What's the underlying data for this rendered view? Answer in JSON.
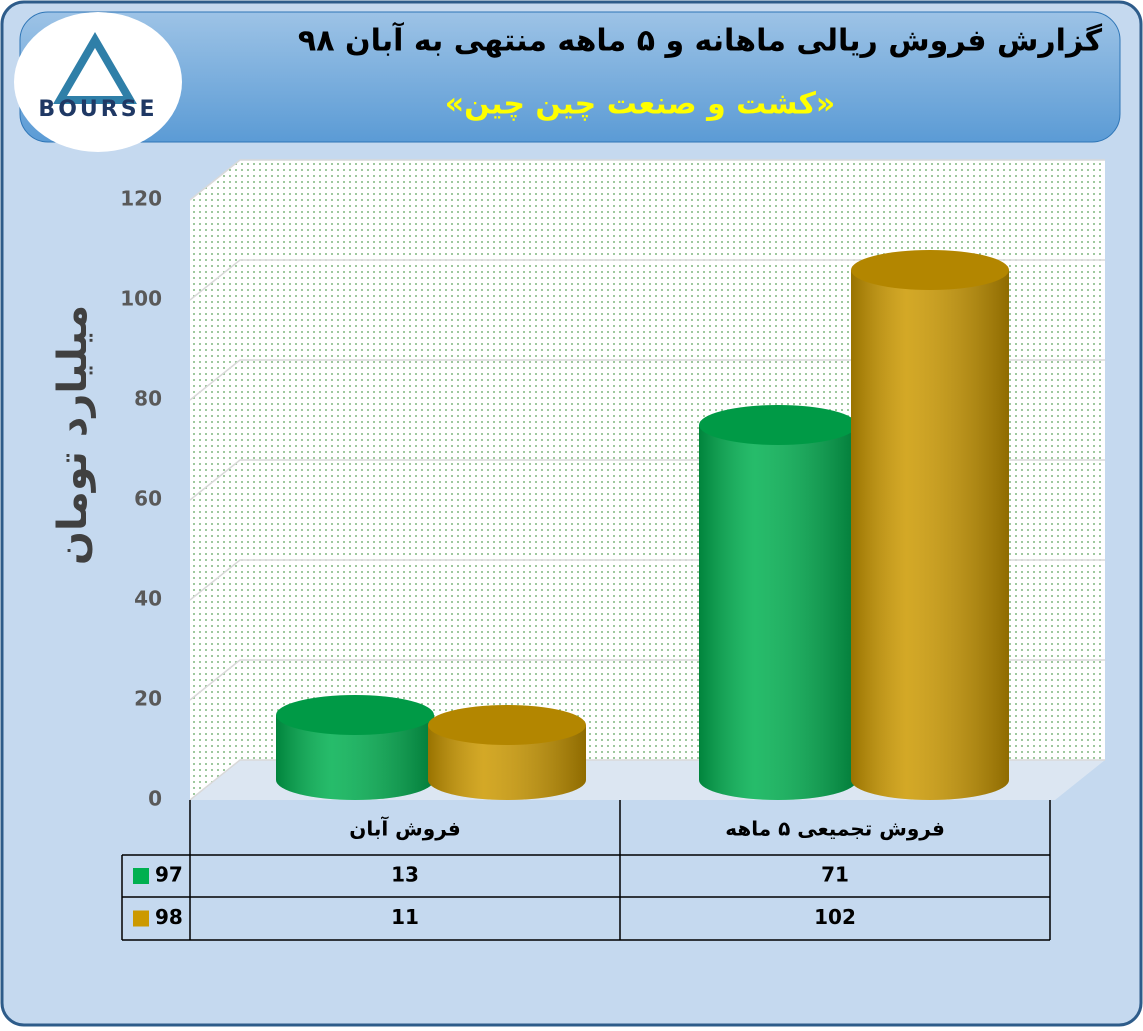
{
  "logo": {
    "text": "BOURSE"
  },
  "chart_data": {
    "type": "bar",
    "title": "گزارش فروش ریالی ماهانه و ۵ ماهه منتهی به آبان ۹۸",
    "subtitle": "«کشت و صنعت چین چین»",
    "y_label": "میلیارد تومان",
    "categories": [
      "فروش آبان",
      "فروش تجمیعی ۵ ماهه"
    ],
    "series": [
      {
        "name": "97",
        "color": "#00b050",
        "values": [
          13,
          71
        ]
      },
      {
        "name": "98",
        "color": "#cc9900",
        "values": [
          11,
          102
        ]
      }
    ],
    "ylim": [
      0,
      120
    ],
    "yticks": [
      0,
      20,
      40,
      60,
      80,
      100,
      120
    ],
    "grid": true
  }
}
